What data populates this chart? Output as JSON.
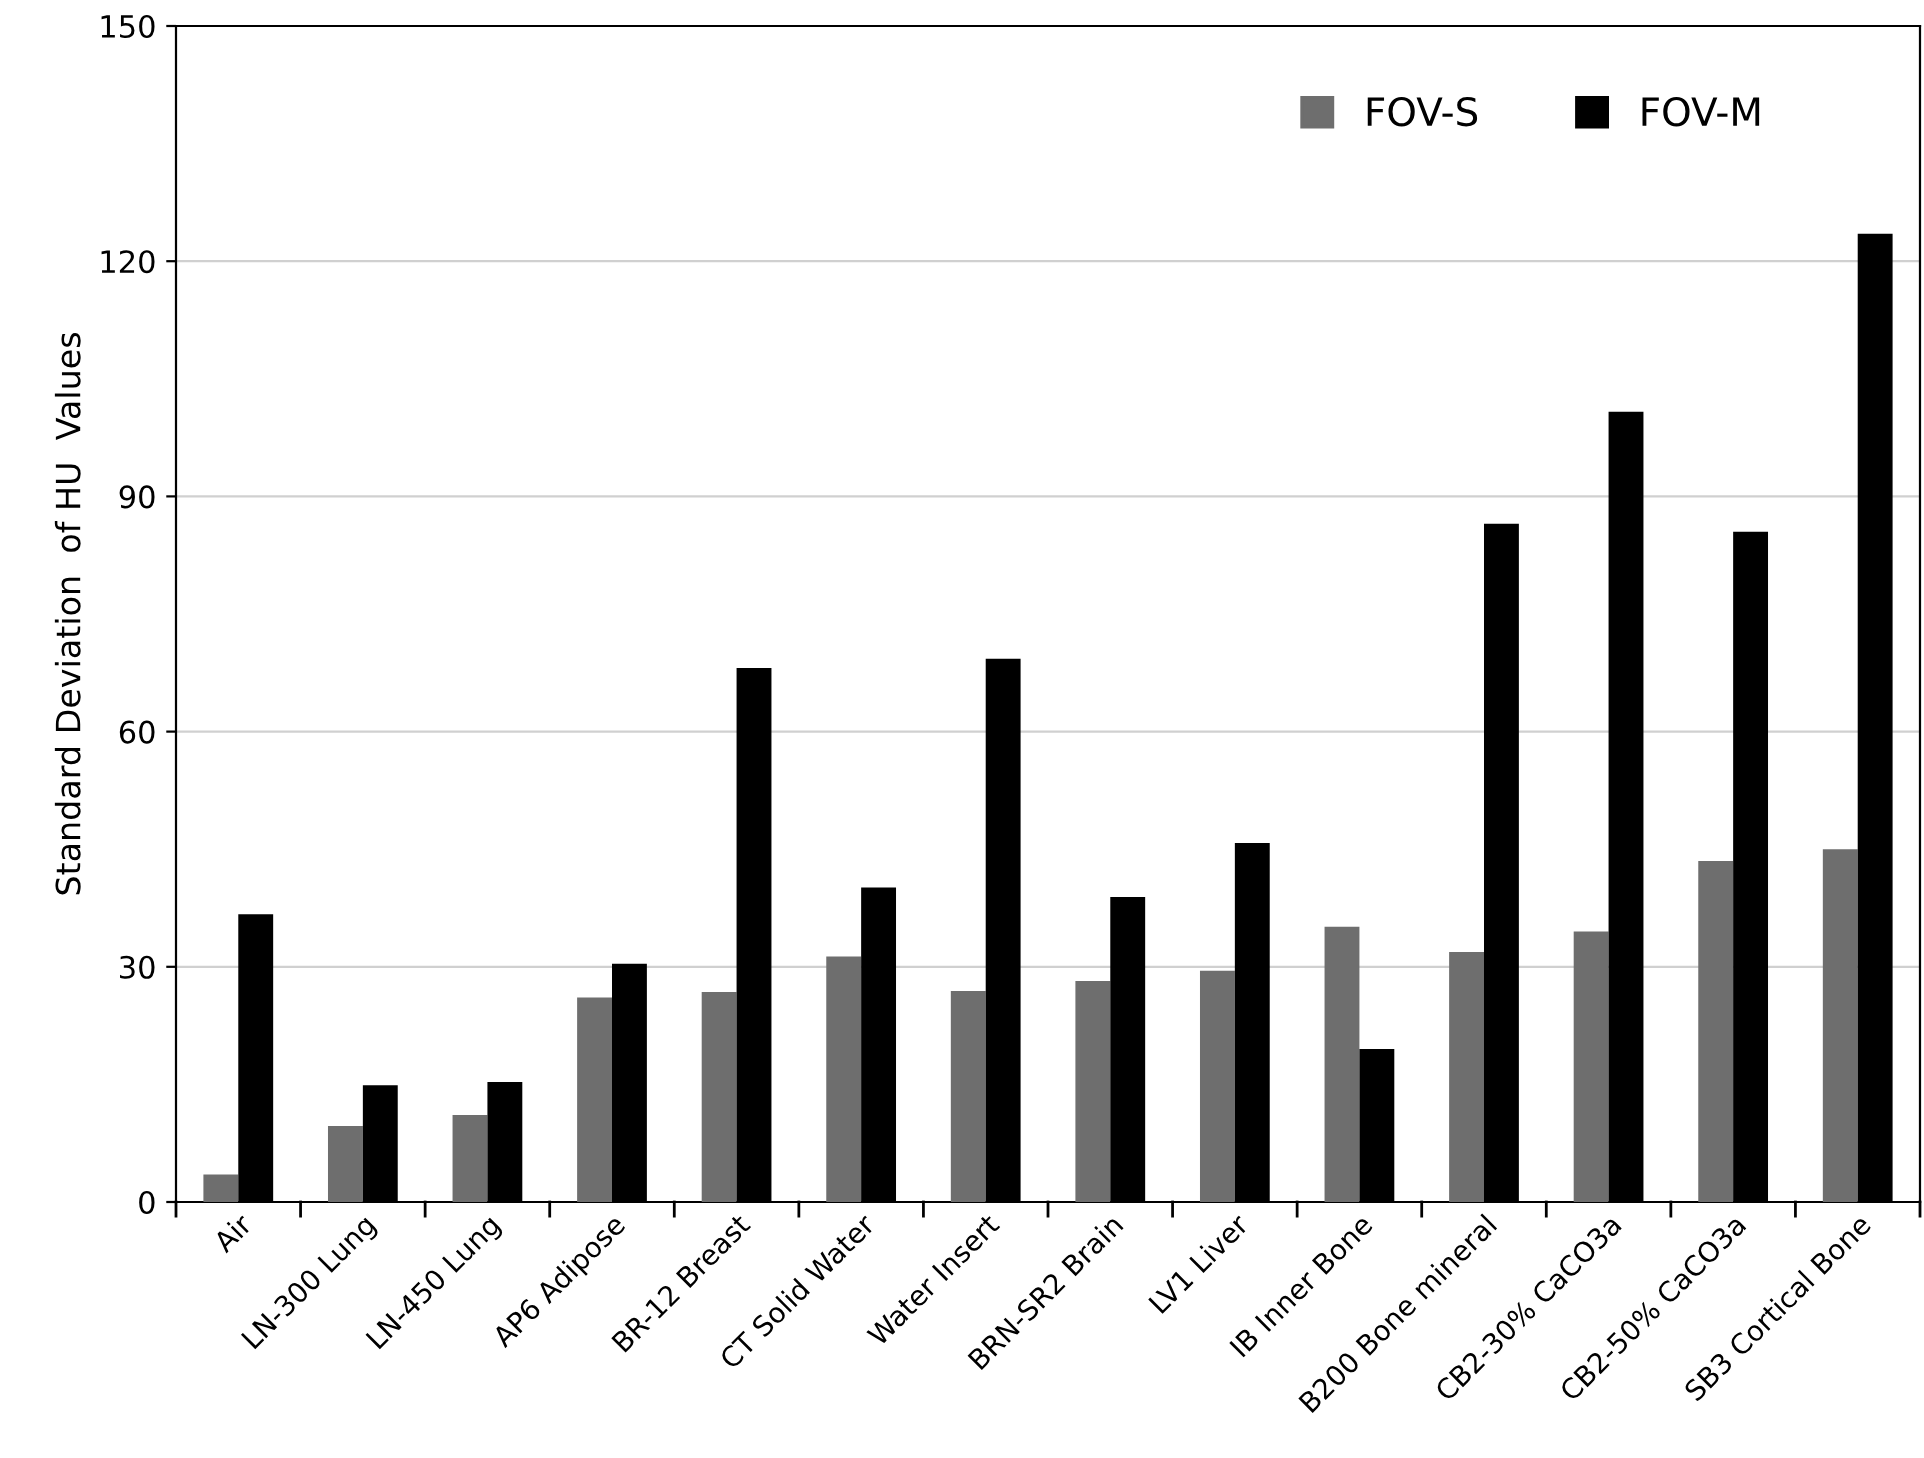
{
  "chart_data": {
    "type": "bar",
    "ylabel": "Standard Deviation  of HU  Values",
    "categories": [
      "Air",
      "LN-300 Lung",
      "LN-450 Lung",
      "AP6 Adipose",
      "BR-12 Breast",
      "CT Solid Water",
      "Water Insert",
      "BRN-SR2 Brain",
      "LV1 Liver",
      "IB Inner Bone",
      "B200 Bone mineral",
      "CB2-30% CaCO3a",
      "CB2-50% CaCO3a",
      "SB3 Cortical Bone"
    ],
    "series": [
      {
        "name": "FOV-S",
        "color": "#6e6e6e",
        "values": [
          3.5,
          9.7,
          11.1,
          26.1,
          26.8,
          31.3,
          26.9,
          28.2,
          29.5,
          35.1,
          31.9,
          34.5,
          43.5,
          45.0
        ]
      },
      {
        "name": "FOV-M",
        "color": "#000000",
        "values": [
          36.7,
          14.9,
          15.3,
          30.4,
          68.1,
          40.1,
          69.3,
          38.9,
          45.8,
          19.5,
          86.5,
          100.8,
          85.5,
          123.5
        ]
      }
    ],
    "ylim": [
      0,
      150
    ],
    "yticks": [
      0,
      30,
      60,
      90,
      120,
      150
    ],
    "grid": "y",
    "legend": "top right"
  }
}
